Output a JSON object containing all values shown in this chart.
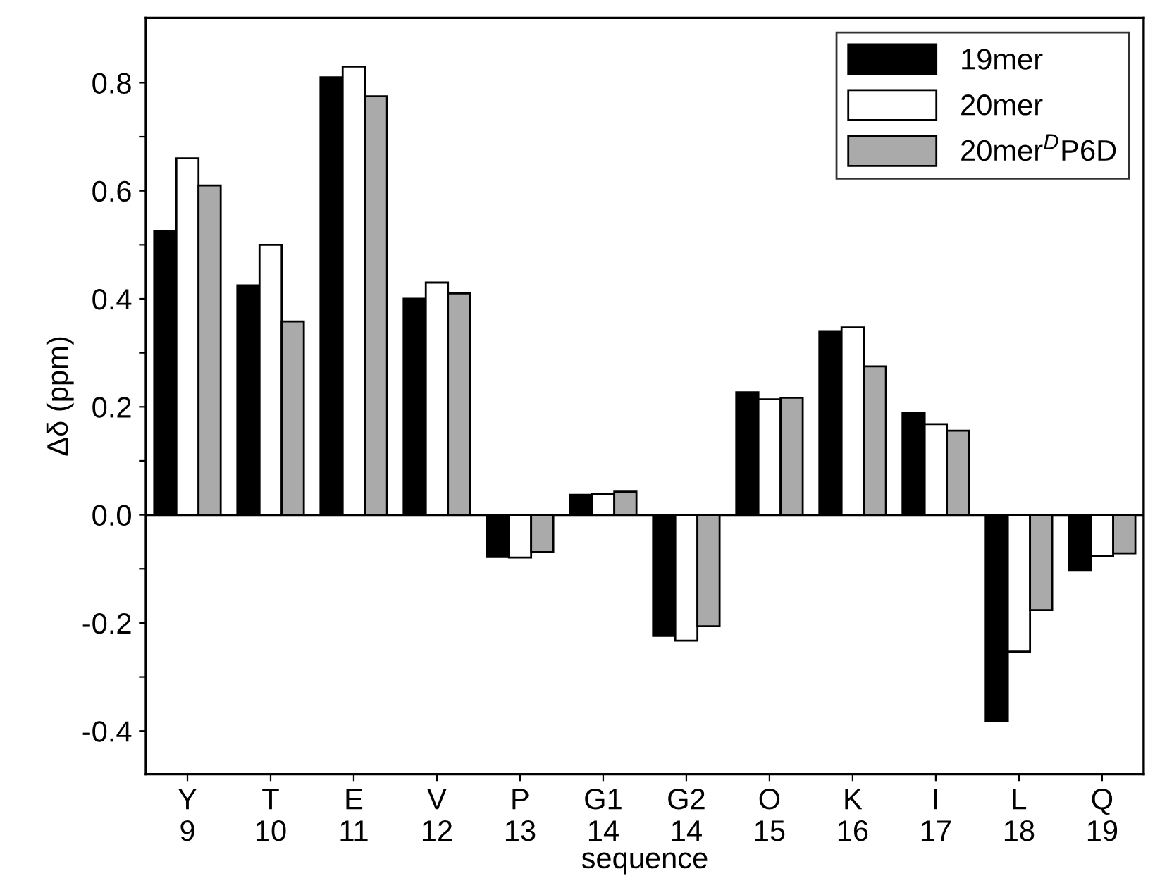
{
  "chart_data": {
    "type": "bar",
    "xlabel": "sequence",
    "ylabel": "Δδ (ppm)",
    "categories": [
      "Y\n9",
      "T\n10",
      "E\n11",
      "V\n12",
      "P\n13",
      "G1\n14",
      "G2\n14",
      "O\n15",
      "K\n16",
      "I\n17",
      "L\n18",
      "Q\n19"
    ],
    "series": [
      {
        "name": "19mer",
        "color": "#000000",
        "values": [
          0.525,
          0.425,
          0.81,
          0.4,
          -0.078,
          0.037,
          -0.224,
          0.227,
          0.34,
          0.188,
          -0.381,
          -0.102
        ]
      },
      {
        "name": "20mer",
        "color": "#ffffff",
        "values": [
          0.66,
          0.5,
          0.83,
          0.43,
          -0.079,
          0.039,
          -0.233,
          0.214,
          0.347,
          0.168,
          -0.253,
          -0.076
        ]
      },
      {
        "name": "20mer$^{D}$P6D",
        "color": "#aaaaaa",
        "values": [
          0.61,
          0.358,
          0.775,
          0.41,
          -0.069,
          0.043,
          -0.206,
          0.217,
          0.275,
          0.156,
          -0.176,
          -0.071
        ]
      }
    ],
    "ylim": [
      -0.48,
      0.92
    ],
    "yticks": [
      {
        "value": -0.4,
        "label": "-0.4"
      },
      {
        "value": -0.3,
        "label": null
      },
      {
        "value": -0.2,
        "label": "-0.2"
      },
      {
        "value": -0.1,
        "label": null
      },
      {
        "value": 0.0,
        "label": "0.0"
      },
      {
        "value": 0.1,
        "label": null
      },
      {
        "value": 0.2,
        "label": "0.2"
      },
      {
        "value": 0.3,
        "label": null
      },
      {
        "value": 0.4,
        "label": "0.4"
      },
      {
        "value": 0.5,
        "label": null
      },
      {
        "value": 0.6,
        "label": "0.6"
      },
      {
        "value": 0.7,
        "label": null
      },
      {
        "value": 0.8,
        "label": "0.8"
      }
    ],
    "ref_lines": [
      {
        "axis": "y",
        "value": 0.0,
        "color": "#000000"
      }
    ],
    "grid": false,
    "legend": "top right"
  }
}
